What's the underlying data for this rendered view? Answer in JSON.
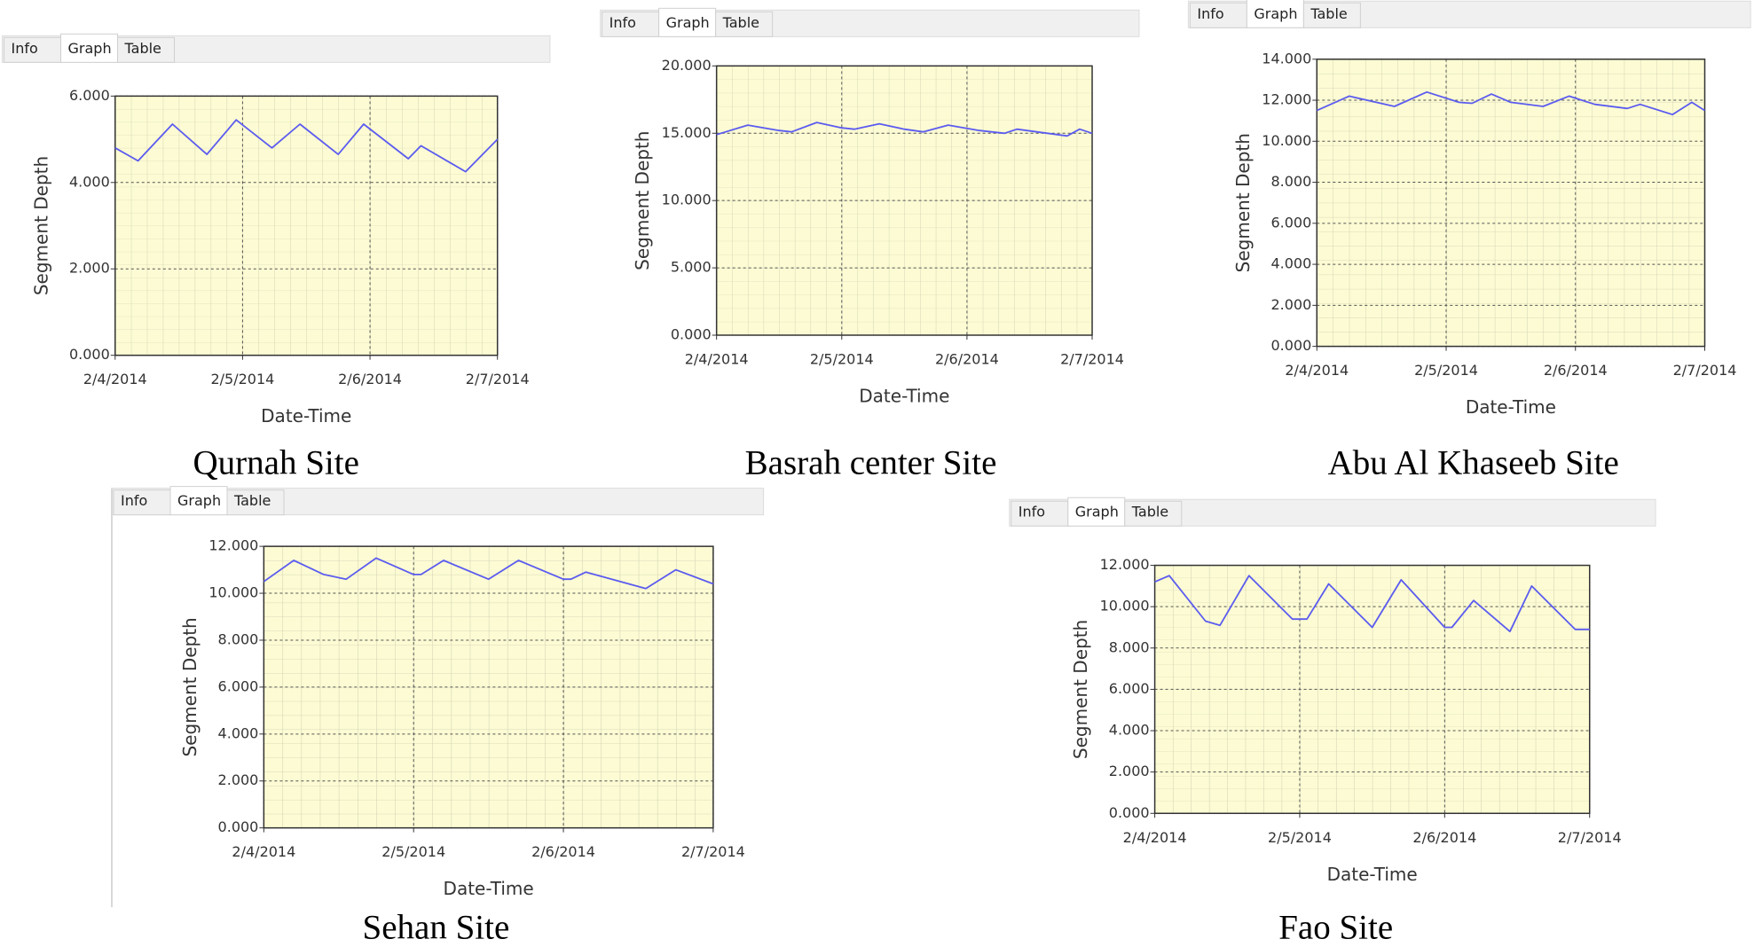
{
  "chart_data": [
    {
      "type": "line",
      "tabs": [
        "Info",
        "Graph",
        "Table"
      ],
      "caption": "Qurnah Site",
      "y_label": "Segment Depth",
      "x_label": "Date-Time",
      "color": "#5b5bf0",
      "grid": true,
      "x": [
        0,
        0.18,
        0.45,
        0.72,
        0.95,
        1.23,
        1.45,
        1.75,
        1.95,
        2.3,
        2.4,
        2.75,
        3.0
      ],
      "values": [
        4.8,
        4.5,
        5.35,
        4.65,
        5.45,
        4.8,
        5.35,
        4.65,
        5.35,
        4.55,
        4.85,
        4.25,
        5.0
      ],
      "xlim": [
        0,
        3
      ],
      "xticks": [
        {
          "value": 0,
          "label": "2/4/2014"
        },
        {
          "value": 1,
          "label": "2/5/2014"
        },
        {
          "value": 2,
          "label": "2/6/2014"
        },
        {
          "value": 3,
          "label": "2/7/2014"
        }
      ],
      "ylim": [
        0,
        6
      ],
      "yticks": [
        {
          "value": 0,
          "label": "0.000"
        },
        {
          "value": 2,
          "label": "2.000"
        },
        {
          "value": 4,
          "label": "4.000"
        },
        {
          "value": 6,
          "label": "6.000"
        }
      ]
    },
    {
      "type": "line",
      "tabs": [
        "Info",
        "Graph",
        "Table"
      ],
      "caption": "Basrah center Site",
      "y_label": "Segment Depth",
      "x_label": "Date-Time",
      "color": "#5b5bf0",
      "grid": true,
      "x": [
        0,
        0.25,
        0.5,
        0.6,
        0.8,
        1.0,
        1.1,
        1.3,
        1.5,
        1.65,
        1.85,
        2.1,
        2.3,
        2.4,
        2.8,
        2.9,
        3.0
      ],
      "values": [
        14.9,
        15.6,
        15.2,
        15.1,
        15.8,
        15.4,
        15.3,
        15.7,
        15.3,
        15.1,
        15.6,
        15.2,
        15.0,
        15.3,
        14.8,
        15.3,
        15.0
      ],
      "xlim": [
        0,
        3
      ],
      "xticks": [
        {
          "value": 0,
          "label": "2/4/2014"
        },
        {
          "value": 1,
          "label": "2/5/2014"
        },
        {
          "value": 2,
          "label": "2/6/2014"
        },
        {
          "value": 3,
          "label": "2/7/2014"
        }
      ],
      "ylim": [
        0,
        20
      ],
      "yticks": [
        {
          "value": 0,
          "label": "0.000"
        },
        {
          "value": 5,
          "label": "5.000"
        },
        {
          "value": 10,
          "label": "10.000"
        },
        {
          "value": 15,
          "label": "15.000"
        },
        {
          "value": 20,
          "label": "20.000"
        }
      ]
    },
    {
      "type": "line",
      "tabs": [
        "Info",
        "Graph",
        "Table"
      ],
      "caption": "Abu Al Khaseeb Site",
      "y_label": "Segment Depth",
      "x_label": "Date-Time",
      "color": "#5b5bf0",
      "grid": true,
      "x": [
        0,
        0.25,
        0.6,
        0.85,
        1.1,
        1.2,
        1.35,
        1.5,
        1.75,
        1.95,
        2.15,
        2.4,
        2.5,
        2.75,
        2.9,
        3.0
      ],
      "values": [
        11.5,
        12.2,
        11.7,
        12.4,
        11.9,
        11.85,
        12.3,
        11.9,
        11.7,
        12.2,
        11.8,
        11.6,
        11.8,
        11.3,
        11.9,
        11.5
      ],
      "xlim": [
        0,
        3
      ],
      "xticks": [
        {
          "value": 0,
          "label": "2/4/2014"
        },
        {
          "value": 1,
          "label": "2/5/2014"
        },
        {
          "value": 2,
          "label": "2/6/2014"
        },
        {
          "value": 3,
          "label": "2/7/2014"
        }
      ],
      "ylim": [
        0,
        14
      ],
      "yticks": [
        {
          "value": 0,
          "label": "0.000"
        },
        {
          "value": 2,
          "label": "2.000"
        },
        {
          "value": 4,
          "label": "4.000"
        },
        {
          "value": 6,
          "label": "6.000"
        },
        {
          "value": 8,
          "label": "8.000"
        },
        {
          "value": 10,
          "label": "10.000"
        },
        {
          "value": 12,
          "label": "12.000"
        },
        {
          "value": 14,
          "label": "14.000"
        }
      ]
    },
    {
      "type": "line",
      "tabs": [
        "Info",
        "Graph",
        "Table"
      ],
      "caption": "Sehan Site",
      "y_label": "Segment Depth",
      "x_label": "Date-Time",
      "color": "#5b5bf0",
      "grid": true,
      "x": [
        0,
        0.2,
        0.4,
        0.55,
        0.75,
        1.0,
        1.05,
        1.2,
        1.5,
        1.7,
        2.0,
        2.05,
        2.15,
        2.55,
        2.75,
        3.0
      ],
      "values": [
        10.5,
        11.4,
        10.8,
        10.6,
        11.5,
        10.8,
        10.8,
        11.4,
        10.6,
        11.4,
        10.6,
        10.6,
        10.9,
        10.2,
        11.0,
        10.4
      ],
      "xlim": [
        0,
        3
      ],
      "xticks": [
        {
          "value": 0,
          "label": "2/4/2014"
        },
        {
          "value": 1,
          "label": "2/5/2014"
        },
        {
          "value": 2,
          "label": "2/6/2014"
        },
        {
          "value": 3,
          "label": "2/7/2014"
        }
      ],
      "ylim": [
        0,
        12
      ],
      "yticks": [
        {
          "value": 0,
          "label": "0.000"
        },
        {
          "value": 2,
          "label": "2.000"
        },
        {
          "value": 4,
          "label": "4.000"
        },
        {
          "value": 6,
          "label": "6.000"
        },
        {
          "value": 8,
          "label": "8.000"
        },
        {
          "value": 10,
          "label": "10.000"
        },
        {
          "value": 12,
          "label": "12.000"
        }
      ]
    },
    {
      "type": "line",
      "tabs": [
        "Info",
        "Graph",
        "Table"
      ],
      "caption": "Fao Site",
      "y_label": "Segment Depth",
      "x_label": "Date-Time",
      "color": "#5b5bf0",
      "grid": true,
      "x": [
        0,
        0.1,
        0.35,
        0.45,
        0.65,
        0.95,
        1.05,
        1.2,
        1.5,
        1.7,
        2.0,
        2.05,
        2.2,
        2.45,
        2.6,
        2.9,
        3.0
      ],
      "values": [
        11.2,
        11.5,
        9.3,
        9.1,
        11.5,
        9.4,
        9.4,
        11.1,
        9.0,
        11.3,
        9.0,
        9.0,
        10.3,
        8.8,
        11.0,
        8.9,
        8.9
      ],
      "xlim": [
        0,
        3
      ],
      "xticks": [
        {
          "value": 0,
          "label": "2/4/2014"
        },
        {
          "value": 1,
          "label": "2/5/2014"
        },
        {
          "value": 2,
          "label": "2/6/2014"
        },
        {
          "value": 3,
          "label": "2/7/2014"
        }
      ],
      "ylim": [
        0,
        12
      ],
      "yticks": [
        {
          "value": 0,
          "label": "0.000"
        },
        {
          "value": 2,
          "label": "2.000"
        },
        {
          "value": 4,
          "label": "4.000"
        },
        {
          "value": 6,
          "label": "6.000"
        },
        {
          "value": 8,
          "label": "8.000"
        },
        {
          "value": 10,
          "label": "10.000"
        },
        {
          "value": 12,
          "label": "12.000"
        }
      ]
    }
  ]
}
